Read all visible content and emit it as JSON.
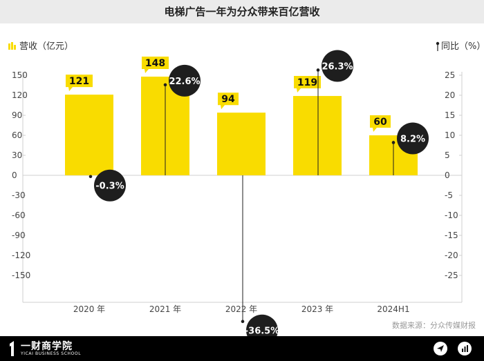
{
  "title": "电梯广告一年为分众带来百亿营收",
  "source": "数据来源：分众传媒财报",
  "brand": {
    "name": "一财商学院",
    "sub": "YICAI BUSINESS SCHOOL"
  },
  "footer_icons": [
    "send-icon",
    "bar-chart-icon"
  ],
  "chart_data": {
    "type": "bar",
    "categories": [
      "2020 年",
      "2021 年",
      "2022 年",
      "2023 年",
      "2024H1"
    ],
    "series": [
      {
        "name": "营收（亿元）",
        "values": [
          121,
          148,
          94,
          119,
          60
        ],
        "labels": [
          "121",
          "148",
          "94",
          "119",
          "60"
        ],
        "color": "#f9dc00"
      },
      {
        "name": "同比（%）",
        "values": [
          -0.3,
          22.6,
          -36.5,
          26.3,
          8.2
        ],
        "labels": [
          "-0.3%",
          "22.6%",
          "-36.5%",
          "26.3%",
          "8.2%"
        ],
        "color": "#1e1e1e"
      }
    ],
    "y_left": {
      "ticks": [
        "150",
        "120",
        "90",
        "60",
        "30",
        "0",
        "-30",
        "-60",
        "-90",
        "-120",
        "-150"
      ],
      "tick_values": [
        150,
        120,
        90,
        60,
        30,
        0,
        -30,
        -60,
        -90,
        -120,
        -150
      ],
      "label": "营收（亿元）"
    },
    "y_right": {
      "ticks": [
        "25",
        "20",
        "15",
        "10",
        "5",
        "0",
        "-5",
        "-10",
        "-15",
        "-20",
        "-25"
      ],
      "tick_values": [
        25,
        20,
        15,
        10,
        5,
        0,
        -5,
        -10,
        -15,
        -20,
        -25
      ],
      "label": "同比（%）"
    },
    "grid": false,
    "legend": "top"
  }
}
